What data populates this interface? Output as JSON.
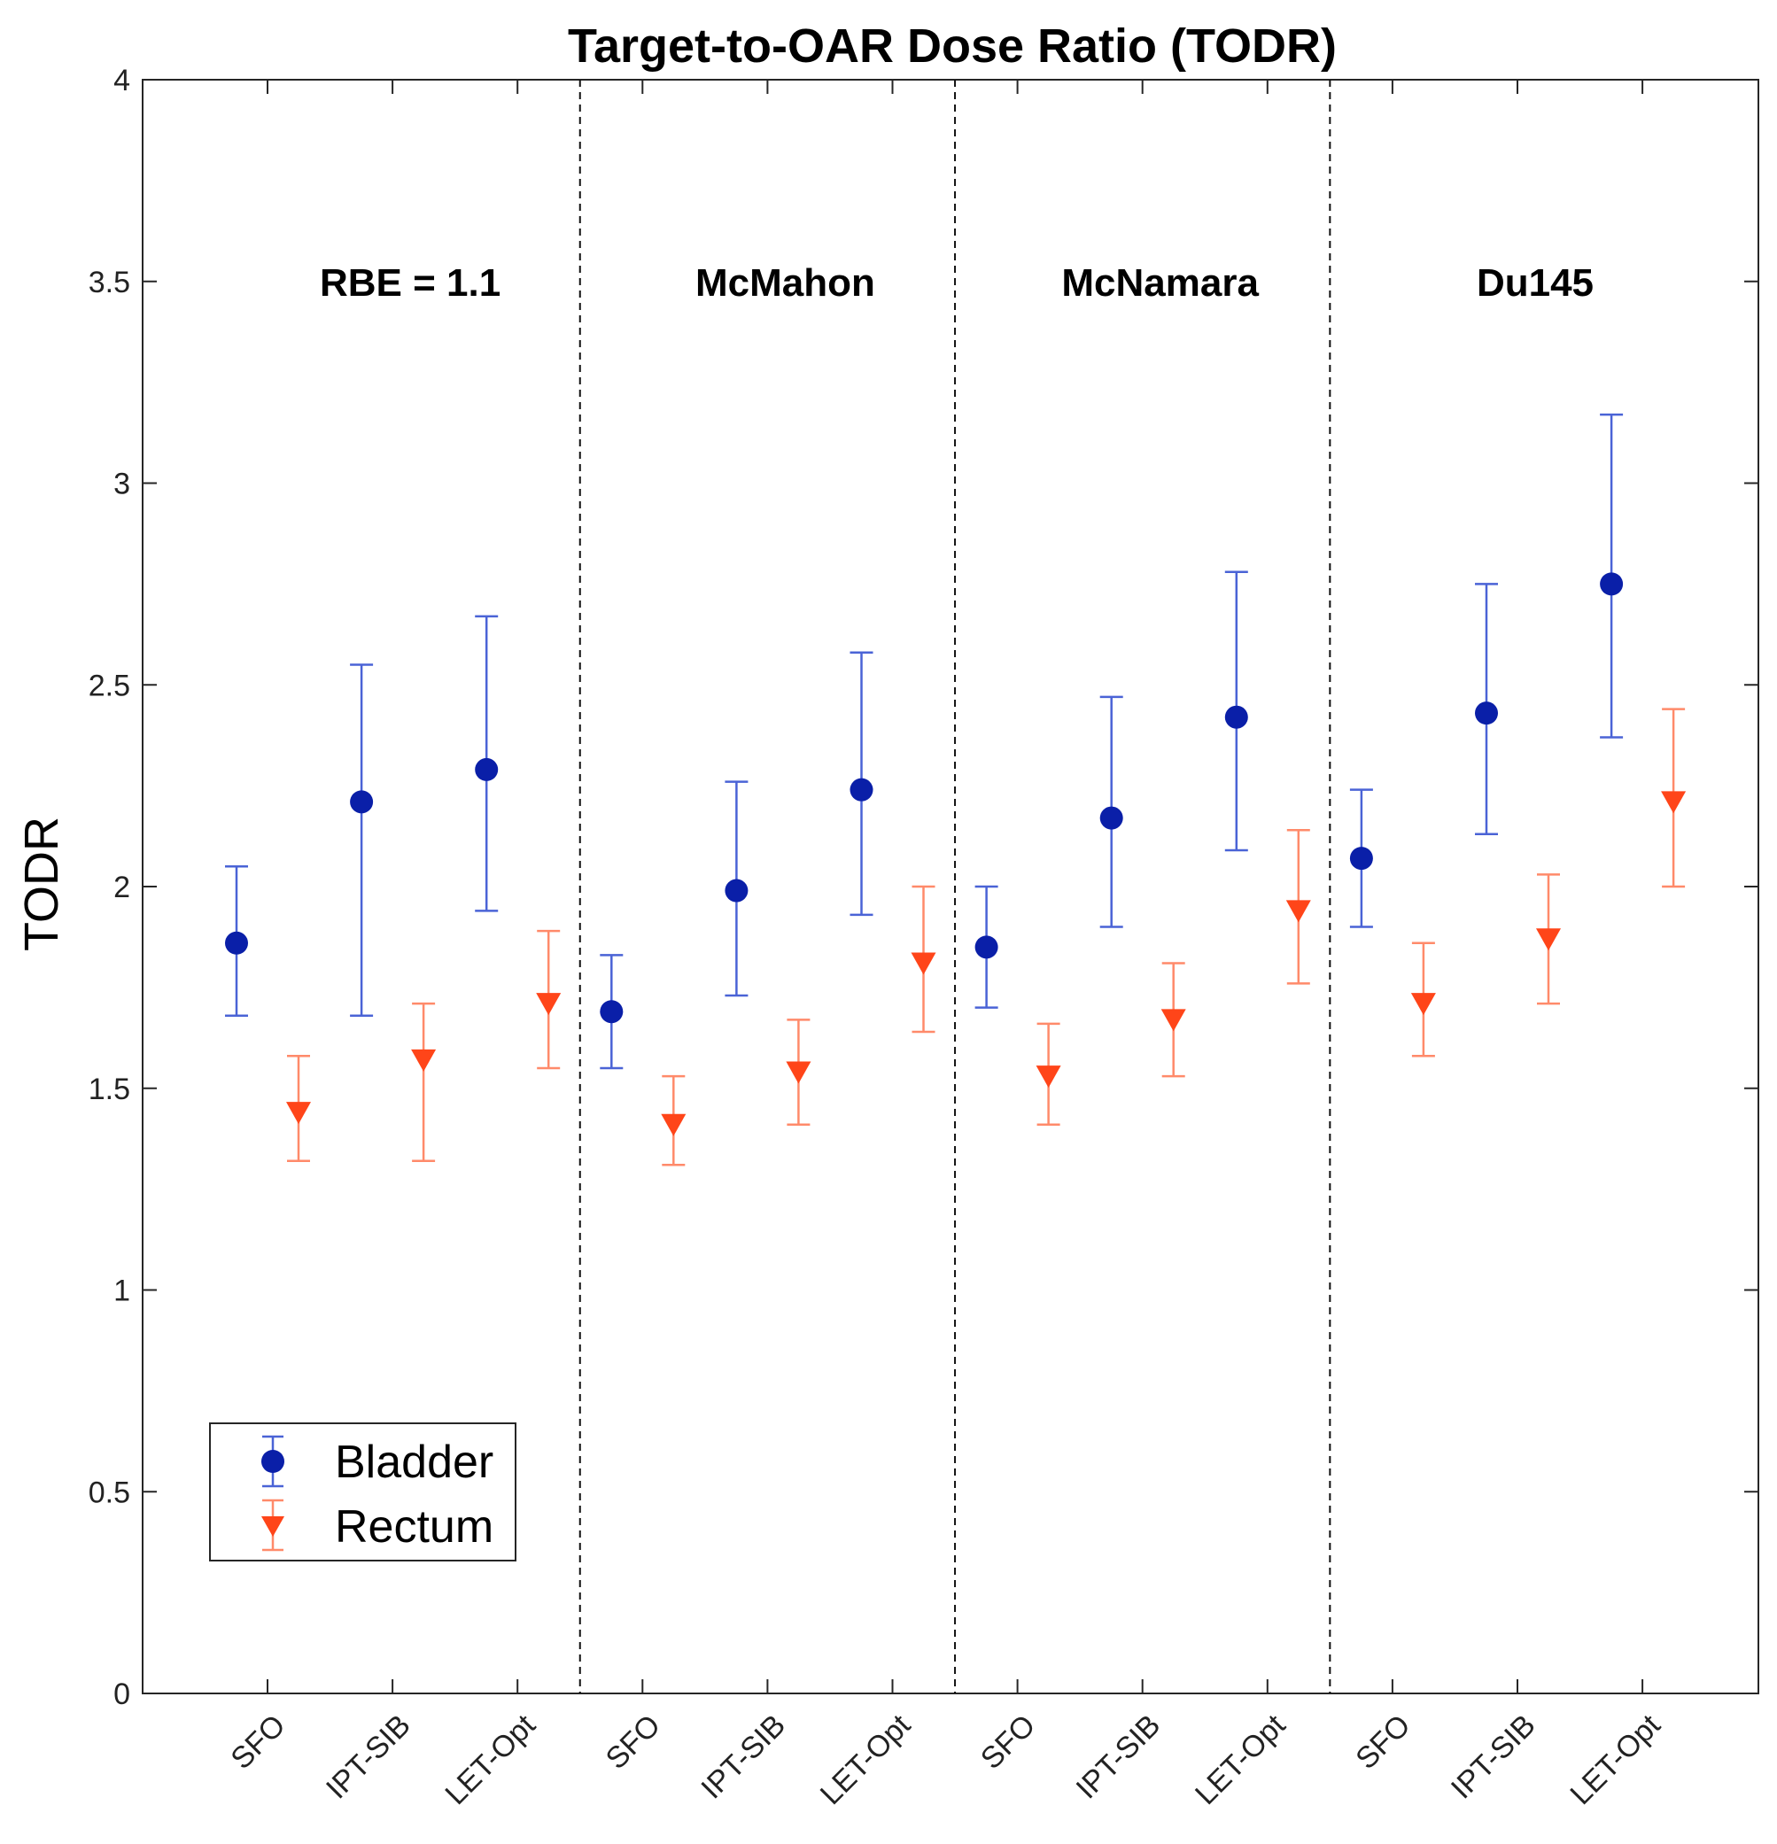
{
  "chart_data": {
    "type": "scatter",
    "title": "Target-to-OAR Dose Ratio (TODR)",
    "xlabel": "",
    "ylabel": "TODR",
    "ylim": [
      0,
      4
    ],
    "yticks": [
      "0",
      "0.5",
      "1",
      "1.5",
      "2",
      "2.5",
      "3",
      "3.5",
      "4"
    ],
    "groups": [
      "RBE = 1.1",
      "McMahon",
      "McNamara",
      "Du145"
    ],
    "categories": [
      "SFO",
      "IPT-SIB",
      "LET-Opt",
      "SFO",
      "IPT-SIB",
      "LET-Opt",
      "SFO",
      "IPT-SIB",
      "LET-Opt",
      "SFO",
      "IPT-SIB",
      "LET-Opt"
    ],
    "series": [
      {
        "name": "Bladder",
        "color": "#0a1fa8",
        "bar_color": "#4a63d6",
        "marker": "circle",
        "values": [
          1.86,
          2.21,
          2.29,
          1.69,
          1.99,
          2.24,
          1.85,
          2.17,
          2.42,
          2.07,
          2.43,
          2.75
        ],
        "lower": [
          1.68,
          1.68,
          1.94,
          1.55,
          1.73,
          1.93,
          1.7,
          1.9,
          2.09,
          1.9,
          2.13,
          2.37
        ],
        "upper": [
          2.05,
          2.55,
          2.67,
          1.83,
          2.26,
          2.58,
          2.0,
          2.47,
          2.78,
          2.24,
          2.75,
          3.17
        ]
      },
      {
        "name": "Rectum",
        "color": "#ff4519",
        "bar_color": "#ff8a6a",
        "marker": "triangle-down",
        "values": [
          1.44,
          1.57,
          1.71,
          1.41,
          1.54,
          1.81,
          1.53,
          1.67,
          1.94,
          1.71,
          1.87,
          2.21
        ],
        "lower": [
          1.32,
          1.32,
          1.55,
          1.31,
          1.41,
          1.64,
          1.41,
          1.53,
          1.76,
          1.58,
          1.71,
          2.0
        ],
        "upper": [
          1.58,
          1.71,
          1.89,
          1.53,
          1.67,
          2.0,
          1.66,
          1.81,
          2.14,
          1.86,
          2.03,
          2.44
        ]
      }
    ],
    "legend_position": "bottom-left"
  }
}
